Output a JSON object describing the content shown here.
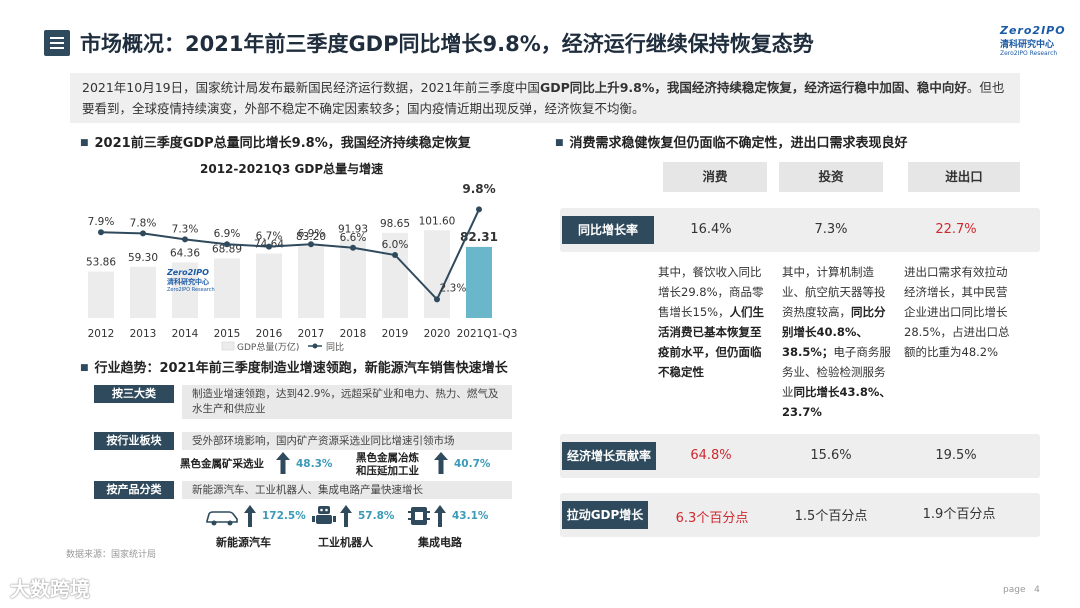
{
  "header": {
    "title": "市场概况：2021年前三季度GDP同比增长9.8%，经济运行继续保持恢复态势",
    "logo_line1": "Zero2IPO",
    "logo_line2": "清科研究中心",
    "logo_line3": "Zero2IPO Research"
  },
  "intro": {
    "part1": "2021年10月19日，国家统计局发布最新国民经济运行数据，2021年前三季度中国",
    "bold1": "GDP同比上升9.8%，我国经济持续稳定恢复，经济运行稳中加固、稳中向好",
    "part2": "。但也要看到，全球疫情持续演变，外部不稳定不确定因素较多；国内疫情近期出现反弹，经济恢复不均衡。"
  },
  "left_section_title": "2021前三季度GDP总量同比增长9.8%，我国经济持续稳定恢复",
  "chart_title": "2012-2021Q3 GDP总量与增速",
  "chart_data": {
    "type": "bar",
    "title": "2012-2021Q3 GDP总量与增速",
    "categories": [
      "2012",
      "2013",
      "2014",
      "2015",
      "2016",
      "2017",
      "2018",
      "2019",
      "2020",
      "2021Q1-Q3"
    ],
    "series": [
      {
        "name": "GDP总量(万亿)",
        "type": "bar",
        "values": [
          53.86,
          59.3,
          64.36,
          68.89,
          74.64,
          83.2,
          91.93,
          98.65,
          101.6,
          82.31
        ]
      },
      {
        "name": "同比",
        "type": "line",
        "values": [
          7.9,
          7.8,
          7.3,
          6.9,
          6.7,
          6.9,
          6.6,
          6.0,
          2.3,
          9.8
        ]
      }
    ],
    "bar_labels": [
      "53.86",
      "59.30",
      "64.36",
      "68.89",
      "74.64",
      "83.20",
      "91.93",
      "98.65",
      "101.60",
      "82.31"
    ],
    "line_labels": [
      "7.9%",
      "7.8%",
      "7.3%",
      "6.9%",
      "6.7%",
      "6.9%",
      "6.6%",
      "6.0%",
      "2.3%",
      "9.8%"
    ],
    "legend": [
      "GDP总量(万亿)",
      "同比"
    ],
    "legend_position": "bottom",
    "bar_color": "#ececec",
    "highlight_bar_color": "#6ab7cc",
    "line_color": "#2f4a5c",
    "ylim_bar": [
      0,
      110
    ],
    "ylim_line": [
      0,
      11
    ]
  },
  "trend": {
    "title": "行业趋势：2021年前三季度制造业增速领跑，新能源汽车销售快速增长",
    "tag1": "按三大类",
    "text1": "制造业增速领跑，达到42.9%，远超采矿业和电力、热力、燃气及水生产和供应业",
    "tag2": "按行业板块",
    "text2": "受外部环境影响，国内矿产资源采选业同比增速引领市场",
    "ind1_name": "黑色金属矿采选业",
    "ind1_val": "48.3%",
    "ind2_name1": "黑色金属冶炼",
    "ind2_name2": "和压延加工业",
    "ind2_val": "40.7%",
    "tag3": "按产品分类",
    "text3": "新能源汽车、工业机器人、集成电路产量快速增长",
    "prod1_val": "172.5%",
    "prod1_name": "新能源汽车",
    "prod2_val": "57.8%",
    "prod2_name": "工业机器人",
    "prod3_val": "43.1%",
    "prod3_name": "集成电路"
  },
  "source": "数据来源：国家统计局",
  "right": {
    "section_title": "消费需求稳健恢复但仍面临不确定性，进出口需求表现良好",
    "col1": "消费",
    "col2": "投资",
    "col3": "进出口",
    "row1_label": "同比增长率",
    "row1": [
      "16.4%",
      "7.3%",
      "22.7%"
    ],
    "desc1_plain": "其中，餐饮收入同比增长29.8%，商品零售增长15%，",
    "desc1_bold": "人们生活消费已基本恢复至疫前水平，但仍面临不稳定性",
    "desc2_plain1": "其中，计算机制造业、航空航天器等投资热度较高，",
    "desc2_bold1": "同比分别增长40.8%、38.5%；",
    "desc2_plain2": "电子商务服务业、检验检测服务业",
    "desc2_bold2": "同比增长43.8%、23.7%",
    "desc3_plain": "进出口需求有效拉动经济增长，其中民营企业进出口同比增长28.5%，占进出口总额的比重为48.2%",
    "row2_label": "经济增长贡献率",
    "row2": [
      "64.8%",
      "15.6%",
      "19.5%"
    ],
    "row3_label": "拉动GDP增长",
    "row3": [
      "6.3个百分点",
      "1.5个百分点",
      "1.9个百分点"
    ]
  },
  "watermark": "大数跨境",
  "page": {
    "label": "page",
    "number": "4"
  }
}
